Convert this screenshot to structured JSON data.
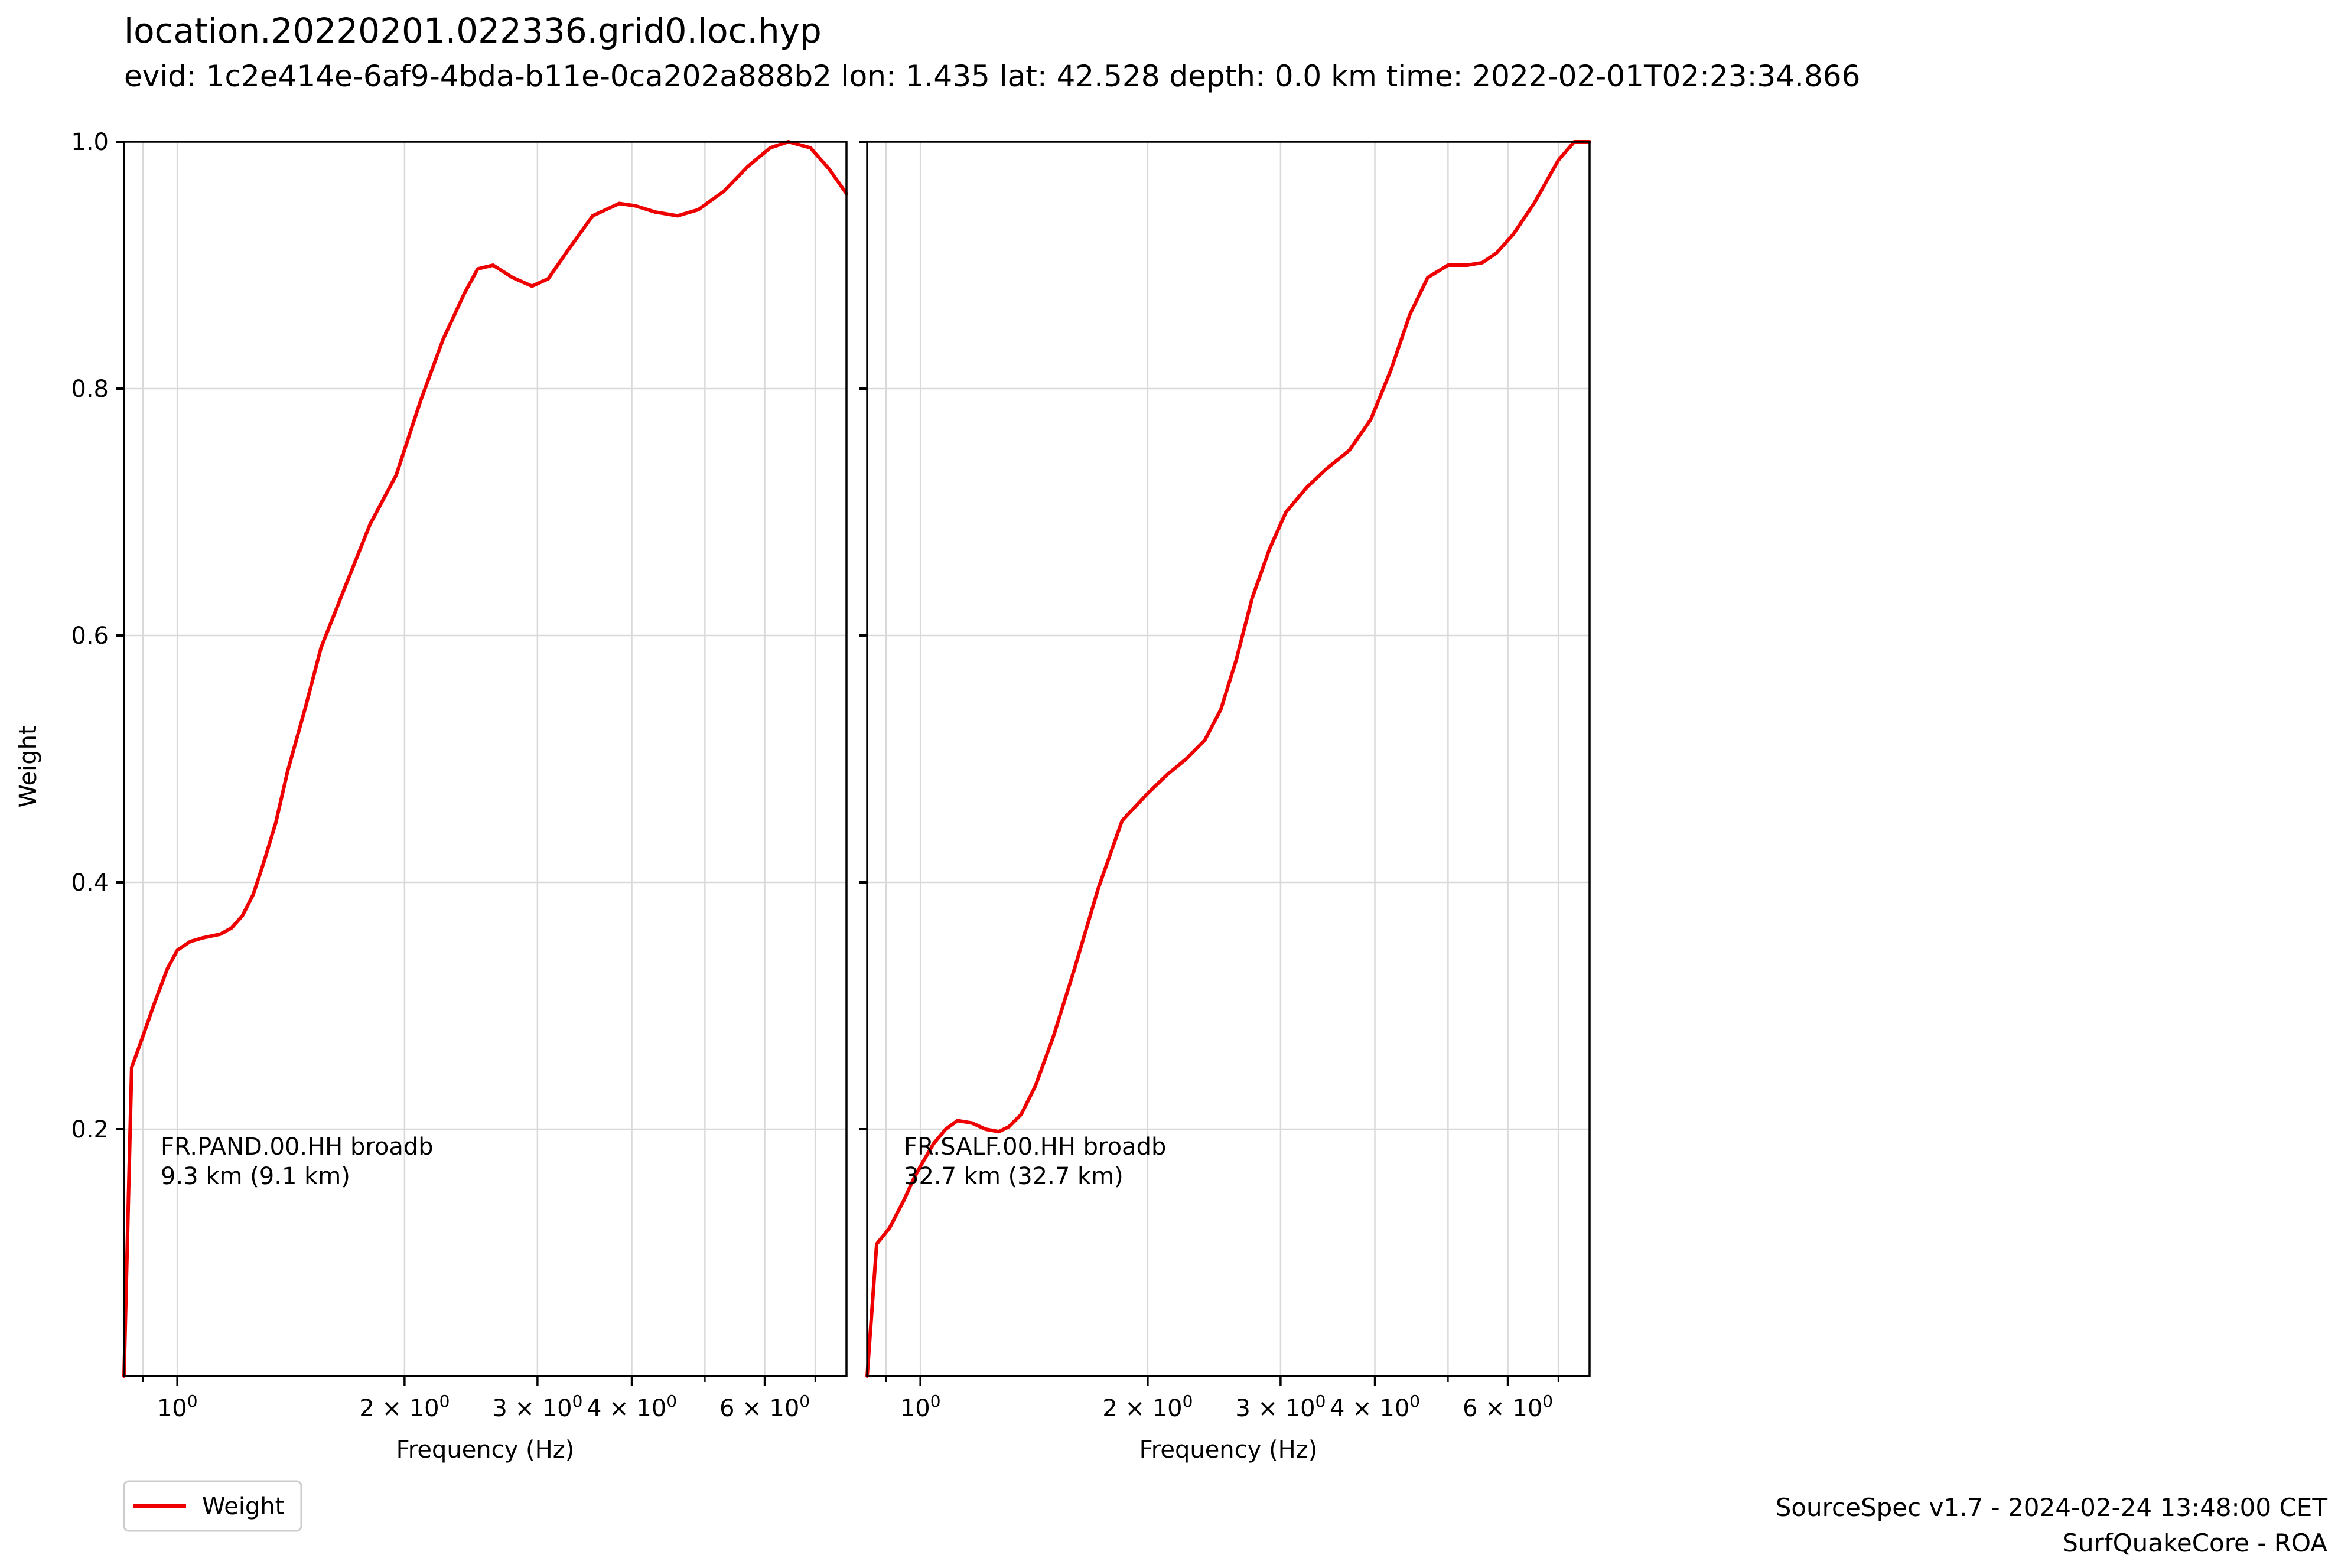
{
  "title": "location.20220201.022336.grid0.loc.hyp",
  "subtitle": "evid: 1c2e414e-6af9-4bda-b11e-0ca202a888b2 lon: 1.435 lat: 42.528 depth: 0.0 km time: 2022-02-01T02:23:34.866",
  "footer": {
    "line1": "SourceSpec v1.7 - 2024-02-24 13:48:00 CET",
    "line2": "SurfQuakeCore - ROA"
  },
  "legend": {
    "label": "Weight",
    "position": "bottom-left"
  },
  "colors": {
    "series": "#ee0000",
    "grid": "#d9d9d9"
  },
  "chart_data": [
    {
      "type": "line",
      "ylabel": "Weight",
      "xlabel": "Frequency (Hz)",
      "xscale": "log",
      "xlim": [
        0.85,
        7.7
      ],
      "ylim": [
        0.0,
        1.0
      ],
      "yticks": [
        "0.2",
        "0.4",
        "0.6",
        "0.8",
        "1.0"
      ],
      "xticks": [
        {
          "value": 1,
          "base": "10",
          "exp": "0",
          "prefix": ""
        },
        {
          "value": 2,
          "base": "10",
          "exp": "0",
          "prefix": "2 × "
        },
        {
          "value": 3,
          "base": "10",
          "exp": "0",
          "prefix": "3 × "
        },
        {
          "value": 4,
          "base": "10",
          "exp": "0",
          "prefix": "4 × "
        },
        {
          "value": 6,
          "base": "10",
          "exp": "0",
          "prefix": "6 × "
        }
      ],
      "grid": true,
      "annotation": [
        "FR.PAND.00.HH broadb",
        "9.3 km (9.1 km)"
      ],
      "series": [
        {
          "name": "Weight",
          "x": [
            0.85,
            0.87,
            0.9,
            0.93,
            0.97,
            1.0,
            1.04,
            1.08,
            1.14,
            1.18,
            1.22,
            1.26,
            1.3,
            1.35,
            1.4,
            1.48,
            1.55,
            1.65,
            1.8,
            1.95,
            2.1,
            2.25,
            2.4,
            2.5,
            2.62,
            2.78,
            2.95,
            3.1,
            3.3,
            3.55,
            3.85,
            4.05,
            4.3,
            4.6,
            4.9,
            5.3,
            5.7,
            6.1,
            6.45,
            6.9,
            7.3,
            7.7
          ],
          "y": [
            0.0,
            0.25,
            0.275,
            0.3,
            0.33,
            0.345,
            0.352,
            0.355,
            0.358,
            0.363,
            0.373,
            0.39,
            0.415,
            0.448,
            0.49,
            0.543,
            0.59,
            0.632,
            0.69,
            0.73,
            0.79,
            0.84,
            0.877,
            0.897,
            0.9,
            0.89,
            0.883,
            0.889,
            0.913,
            0.94,
            0.95,
            0.948,
            0.943,
            0.94,
            0.945,
            0.96,
            0.98,
            0.995,
            1.0,
            0.995,
            0.978,
            0.958
          ]
        }
      ]
    },
    {
      "type": "line",
      "ylabel": "",
      "xlabel": "Frequency (Hz)",
      "xscale": "log",
      "xlim": [
        0.85,
        7.7
      ],
      "ylim": [
        0.0,
        1.0
      ],
      "yticks": [
        "",
        "",
        "",
        "",
        ""
      ],
      "xticks": [
        {
          "value": 1,
          "base": "10",
          "exp": "0",
          "prefix": ""
        },
        {
          "value": 2,
          "base": "10",
          "exp": "0",
          "prefix": "2 × "
        },
        {
          "value": 3,
          "base": "10",
          "exp": "0",
          "prefix": "3 × "
        },
        {
          "value": 4,
          "base": "10",
          "exp": "0",
          "prefix": "4 × "
        },
        {
          "value": 6,
          "base": "10",
          "exp": "0",
          "prefix": "6 × "
        }
      ],
      "grid": true,
      "annotation": [
        "FR.SALF.00.HH broadb",
        "32.7 km (32.7 km)"
      ],
      "series": [
        {
          "name": "Weight",
          "x": [
            0.85,
            0.875,
            0.91,
            0.95,
            0.98,
            1.0,
            1.04,
            1.08,
            1.12,
            1.17,
            1.22,
            1.27,
            1.31,
            1.36,
            1.42,
            1.5,
            1.6,
            1.72,
            1.85,
            2.0,
            2.12,
            2.25,
            2.38,
            2.5,
            2.62,
            2.75,
            2.9,
            3.05,
            3.25,
            3.45,
            3.7,
            3.95,
            4.2,
            4.45,
            4.7,
            5.0,
            5.3,
            5.55,
            5.8,
            6.1,
            6.5,
            7.0,
            7.35,
            7.7
          ],
          "y": [
            0.0,
            0.107,
            0.12,
            0.142,
            0.16,
            0.17,
            0.188,
            0.2,
            0.207,
            0.205,
            0.2,
            0.198,
            0.202,
            0.212,
            0.235,
            0.275,
            0.33,
            0.395,
            0.45,
            0.472,
            0.487,
            0.5,
            0.515,
            0.54,
            0.58,
            0.63,
            0.67,
            0.7,
            0.72,
            0.735,
            0.75,
            0.775,
            0.815,
            0.86,
            0.89,
            0.9,
            0.9,
            0.902,
            0.91,
            0.925,
            0.95,
            0.985,
            1.0,
            1.0
          ]
        }
      ]
    }
  ]
}
